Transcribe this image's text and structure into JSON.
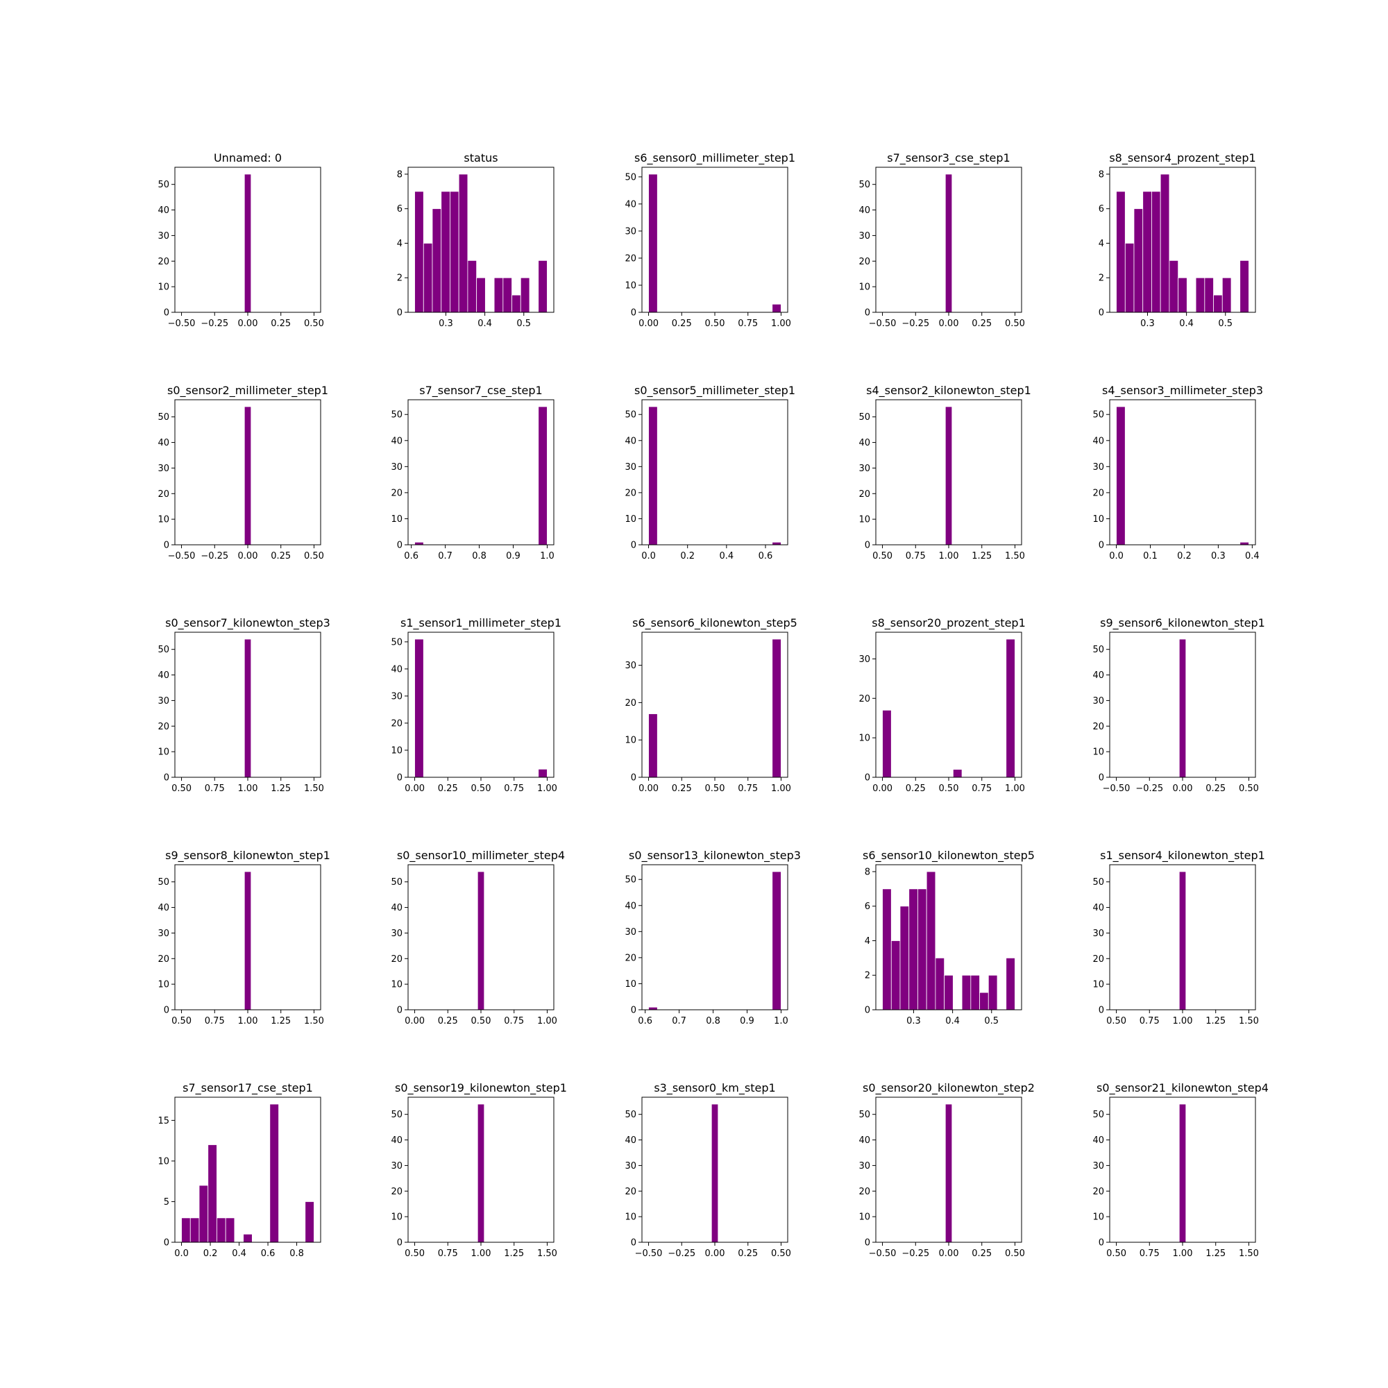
{
  "bar_color": "#800080",
  "bar_edge_color": "#ffffff",
  "chart_data": [
    {
      "type": "bar",
      "title": "Unnamed: 0",
      "bins": [
        -0.025,
        0.025
      ],
      "counts": [
        54
      ],
      "xlim": [
        -0.55,
        0.55
      ],
      "xticks": [
        -0.5,
        -0.25,
        0,
        0.25,
        0.5
      ],
      "xtick_labels": [
        "−0.50",
        "−0.25",
        "0.00",
        "0.25",
        "0.50"
      ],
      "ylim": [
        0,
        56.7
      ],
      "yticks": [
        0,
        10,
        20,
        30,
        40,
        50
      ]
    },
    {
      "type": "bar",
      "title": "status",
      "bins": [
        0.22,
        0.2427,
        0.2653,
        0.288,
        0.3107,
        0.3333,
        0.356,
        0.3787,
        0.4013,
        0.424,
        0.4467,
        0.4693,
        0.492,
        0.5147,
        0.5373,
        0.56
      ],
      "counts": [
        7,
        4,
        6,
        7,
        7,
        8,
        3,
        2,
        0,
        2,
        2,
        1,
        2,
        0,
        3
      ],
      "xlim": [
        0.203,
        0.577
      ],
      "xticks": [
        0.3,
        0.4,
        0.5
      ],
      "xtick_labels": [
        "0.3",
        "0.4",
        "0.5"
      ],
      "ylim": [
        0,
        8.4
      ],
      "yticks": [
        0,
        2,
        4,
        6,
        8
      ]
    },
    {
      "type": "bar",
      "title": "s6_sensor0_millimeter_step1",
      "bins": [
        0,
        0.0667,
        0.1333,
        0.2,
        0.2667,
        0.3333,
        0.4,
        0.4667,
        0.5333,
        0.6,
        0.6667,
        0.7333,
        0.8,
        0.8667,
        0.9333,
        1
      ],
      "counts": [
        51,
        0,
        0,
        0,
        0,
        0,
        0,
        0,
        0,
        0,
        0,
        0,
        0,
        0,
        3
      ],
      "xlim": [
        -0.05,
        1.05
      ],
      "xticks": [
        0,
        0.25,
        0.5,
        0.75,
        1
      ],
      "xtick_labels": [
        "0.00",
        "0.25",
        "0.50",
        "0.75",
        "1.00"
      ],
      "ylim": [
        0,
        53.55
      ],
      "yticks": [
        0,
        10,
        20,
        30,
        40,
        50
      ]
    },
    {
      "type": "bar",
      "title": "s7_sensor3_cse_step1",
      "bins": [
        -0.025,
        0.025
      ],
      "counts": [
        54
      ],
      "xlim": [
        -0.55,
        0.55
      ],
      "xticks": [
        -0.5,
        -0.25,
        0,
        0.25,
        0.5
      ],
      "xtick_labels": [
        "−0.50",
        "−0.25",
        "0.00",
        "0.25",
        "0.50"
      ],
      "ylim": [
        0,
        56.7
      ],
      "yticks": [
        0,
        10,
        20,
        30,
        40,
        50
      ]
    },
    {
      "type": "bar",
      "title": "s8_sensor4_prozent_step1",
      "bins": [
        0.22,
        0.2427,
        0.2653,
        0.288,
        0.3107,
        0.3333,
        0.356,
        0.3787,
        0.4013,
        0.424,
        0.4467,
        0.4693,
        0.492,
        0.5147,
        0.5373,
        0.56
      ],
      "counts": [
        7,
        4,
        6,
        7,
        7,
        8,
        3,
        2,
        0,
        2,
        2,
        1,
        2,
        0,
        3
      ],
      "xlim": [
        0.203,
        0.577
      ],
      "xticks": [
        0.3,
        0.4,
        0.5
      ],
      "xtick_labels": [
        "0.3",
        "0.4",
        "0.5"
      ],
      "ylim": [
        0,
        8.4
      ],
      "yticks": [
        0,
        2,
        4,
        6,
        8
      ]
    },
    {
      "type": "bar",
      "title": "s0_sensor2_millimeter_step1",
      "bins": [
        -0.025,
        0.025
      ],
      "counts": [
        54
      ],
      "xlim": [
        -0.55,
        0.55
      ],
      "xticks": [
        -0.5,
        -0.25,
        0,
        0.25,
        0.5
      ],
      "xtick_labels": [
        "−0.50",
        "−0.25",
        "0.00",
        "0.25",
        "0.50"
      ],
      "ylim": [
        0,
        56.7
      ],
      "yticks": [
        0,
        10,
        20,
        30,
        40,
        50
      ]
    },
    {
      "type": "bar",
      "title": "s7_sensor7_cse_step1",
      "bins": [
        0.61,
        0.636,
        0.662,
        0.688,
        0.714,
        0.74,
        0.766,
        0.792,
        0.818,
        0.844,
        0.87,
        0.896,
        0.922,
        0.948,
        0.974,
        1
      ],
      "counts": [
        1,
        0,
        0,
        0,
        0,
        0,
        0,
        0,
        0,
        0,
        0,
        0,
        0,
        0,
        53
      ],
      "xlim": [
        0.5905,
        1.0195
      ],
      "xticks": [
        0.6,
        0.7,
        0.8,
        0.9,
        1
      ],
      "xtick_labels": [
        "0.6",
        "0.7",
        "0.8",
        "0.9",
        "1.0"
      ],
      "ylim": [
        0,
        55.65
      ],
      "yticks": [
        0,
        10,
        20,
        30,
        40,
        50
      ]
    },
    {
      "type": "bar",
      "title": "s0_sensor5_millimeter_step1",
      "bins": [
        0,
        0.0453,
        0.0907,
        0.136,
        0.1813,
        0.2267,
        0.272,
        0.3173,
        0.3627,
        0.408,
        0.4533,
        0.4987,
        0.544,
        0.5893,
        0.6347,
        0.68
      ],
      "counts": [
        53,
        0,
        0,
        0,
        0,
        0,
        0,
        0,
        0,
        0,
        0,
        0,
        0,
        0,
        1
      ],
      "xlim": [
        -0.034,
        0.714
      ],
      "xticks": [
        0,
        0.2,
        0.4,
        0.6
      ],
      "xtick_labels": [
        "0.0",
        "0.2",
        "0.4",
        "0.6"
      ],
      "ylim": [
        0,
        55.65
      ],
      "yticks": [
        0,
        10,
        20,
        30,
        40,
        50
      ]
    },
    {
      "type": "bar",
      "title": "s4_sensor2_kilonewton_step1",
      "bins": [
        0.975,
        1.025
      ],
      "counts": [
        54
      ],
      "xlim": [
        0.45,
        1.55
      ],
      "xticks": [
        0.5,
        0.75,
        1,
        1.25,
        1.5
      ],
      "xtick_labels": [
        "0.50",
        "0.75",
        "1.00",
        "1.25",
        "1.50"
      ],
      "ylim": [
        0,
        56.7
      ],
      "yticks": [
        0,
        10,
        20,
        30,
        40,
        50
      ]
    },
    {
      "type": "bar",
      "title": "s4_sensor3_millimeter_step3",
      "bins": [
        0,
        0.026,
        0.052,
        0.078,
        0.104,
        0.13,
        0.156,
        0.182,
        0.208,
        0.234,
        0.26,
        0.286,
        0.312,
        0.338,
        0.364,
        0.39
      ],
      "counts": [
        53,
        0,
        0,
        0,
        0,
        0,
        0,
        0,
        0,
        0,
        0,
        0,
        0,
        0,
        1
      ],
      "xlim": [
        -0.0195,
        0.4095
      ],
      "xticks": [
        0,
        0.1,
        0.2,
        0.3,
        0.4
      ],
      "xtick_labels": [
        "0.0",
        "0.1",
        "0.2",
        "0.3",
        "0.4"
      ],
      "ylim": [
        0,
        55.65
      ],
      "yticks": [
        0,
        10,
        20,
        30,
        40,
        50
      ]
    },
    {
      "type": "bar",
      "title": "s0_sensor7_kilonewton_step3",
      "bins": [
        0.975,
        1.025
      ],
      "counts": [
        54
      ],
      "xlim": [
        0.45,
        1.55
      ],
      "xticks": [
        0.5,
        0.75,
        1,
        1.25,
        1.5
      ],
      "xtick_labels": [
        "0.50",
        "0.75",
        "1.00",
        "1.25",
        "1.50"
      ],
      "ylim": [
        0,
        56.7
      ],
      "yticks": [
        0,
        10,
        20,
        30,
        40,
        50
      ]
    },
    {
      "type": "bar",
      "title": "s1_sensor1_millimeter_step1",
      "bins": [
        0,
        0.0667,
        0.1333,
        0.2,
        0.2667,
        0.3333,
        0.4,
        0.4667,
        0.5333,
        0.6,
        0.6667,
        0.7333,
        0.8,
        0.8667,
        0.9333,
        1
      ],
      "counts": [
        51,
        0,
        0,
        0,
        0,
        0,
        0,
        0,
        0,
        0,
        0,
        0,
        0,
        0,
        3
      ],
      "xlim": [
        -0.05,
        1.05
      ],
      "xticks": [
        0,
        0.25,
        0.5,
        0.75,
        1
      ],
      "xtick_labels": [
        "0.00",
        "0.25",
        "0.50",
        "0.75",
        "1.00"
      ],
      "ylim": [
        0,
        53.55
      ],
      "yticks": [
        0,
        10,
        20,
        30,
        40,
        50
      ]
    },
    {
      "type": "bar",
      "title": "s6_sensor6_kilonewton_step5",
      "bins": [
        0,
        0.0667,
        0.1333,
        0.2,
        0.2667,
        0.3333,
        0.4,
        0.4667,
        0.5333,
        0.6,
        0.6667,
        0.7333,
        0.8,
        0.8667,
        0.9333,
        1
      ],
      "counts": [
        17,
        0,
        0,
        0,
        0,
        0,
        0,
        0,
        0,
        0,
        0,
        0,
        0,
        0,
        37
      ],
      "xlim": [
        -0.05,
        1.05
      ],
      "xticks": [
        0,
        0.25,
        0.5,
        0.75,
        1
      ],
      "xtick_labels": [
        "0.00",
        "0.25",
        "0.50",
        "0.75",
        "1.00"
      ],
      "ylim": [
        0,
        38.85
      ],
      "yticks": [
        0,
        10,
        20,
        30
      ]
    },
    {
      "type": "bar",
      "title": "s8_sensor20_prozent_step1",
      "bins": [
        0,
        0.0667,
        0.1333,
        0.2,
        0.2667,
        0.3333,
        0.4,
        0.4667,
        0.5333,
        0.6,
        0.6667,
        0.7333,
        0.8,
        0.8667,
        0.9333,
        1
      ],
      "counts": [
        17,
        0,
        0,
        0,
        0,
        0,
        0,
        0,
        2,
        0,
        0,
        0,
        0,
        0,
        35
      ],
      "xlim": [
        -0.05,
        1.05
      ],
      "xticks": [
        0,
        0.25,
        0.5,
        0.75,
        1
      ],
      "xtick_labels": [
        "0.00",
        "0.25",
        "0.50",
        "0.75",
        "1.00"
      ],
      "ylim": [
        0,
        36.75
      ],
      "yticks": [
        0,
        10,
        20,
        30
      ]
    },
    {
      "type": "bar",
      "title": "s9_sensor6_kilonewton_step1",
      "bins": [
        -0.025,
        0.025
      ],
      "counts": [
        54
      ],
      "xlim": [
        -0.55,
        0.55
      ],
      "xticks": [
        -0.5,
        -0.25,
        0,
        0.25,
        0.5
      ],
      "xtick_labels": [
        "−0.50",
        "−0.25",
        "0.00",
        "0.25",
        "0.50"
      ],
      "ylim": [
        0,
        56.7
      ],
      "yticks": [
        0,
        10,
        20,
        30,
        40,
        50
      ]
    },
    {
      "type": "bar",
      "title": "s9_sensor8_kilonewton_step1",
      "bins": [
        0.975,
        1.025
      ],
      "counts": [
        54
      ],
      "xlim": [
        0.45,
        1.55
      ],
      "xticks": [
        0.5,
        0.75,
        1,
        1.25,
        1.5
      ],
      "xtick_labels": [
        "0.50",
        "0.75",
        "1.00",
        "1.25",
        "1.50"
      ],
      "ylim": [
        0,
        56.7
      ],
      "yticks": [
        0,
        10,
        20,
        30,
        40,
        50
      ]
    },
    {
      "type": "bar",
      "title": "s0_sensor10_millimeter_step4",
      "bins": [
        0.475,
        0.525
      ],
      "counts": [
        54
      ],
      "xlim": [
        -0.05,
        1.05
      ],
      "xticks": [
        0,
        0.25,
        0.5,
        0.75,
        1
      ],
      "xtick_labels": [
        "0.00",
        "0.25",
        "0.50",
        "0.75",
        "1.00"
      ],
      "ylim": [
        0,
        56.7
      ],
      "yticks": [
        0,
        10,
        20,
        30,
        40,
        50
      ]
    },
    {
      "type": "bar",
      "title": "s0_sensor13_kilonewton_step3",
      "bins": [
        0.61,
        0.636,
        0.662,
        0.688,
        0.714,
        0.74,
        0.766,
        0.792,
        0.818,
        0.844,
        0.87,
        0.896,
        0.922,
        0.948,
        0.974,
        1
      ],
      "counts": [
        1,
        0,
        0,
        0,
        0,
        0,
        0,
        0,
        0,
        0,
        0,
        0,
        0,
        0,
        53
      ],
      "xlim": [
        0.5905,
        1.0195
      ],
      "xticks": [
        0.6,
        0.7,
        0.8,
        0.9,
        1
      ],
      "xtick_labels": [
        "0.6",
        "0.7",
        "0.8",
        "0.9",
        "1.0"
      ],
      "ylim": [
        0,
        55.65
      ],
      "yticks": [
        0,
        10,
        20,
        30,
        40,
        50
      ]
    },
    {
      "type": "bar",
      "title": "s6_sensor10_kilonewton_step5",
      "bins": [
        0.22,
        0.2427,
        0.2653,
        0.288,
        0.3107,
        0.3333,
        0.356,
        0.3787,
        0.4013,
        0.424,
        0.4467,
        0.4693,
        0.492,
        0.5147,
        0.5373,
        0.56
      ],
      "counts": [
        7,
        4,
        6,
        7,
        7,
        8,
        3,
        2,
        0,
        2,
        2,
        1,
        2,
        0,
        3
      ],
      "xlim": [
        0.203,
        0.577
      ],
      "xticks": [
        0.3,
        0.4,
        0.5
      ],
      "xtick_labels": [
        "0.3",
        "0.4",
        "0.5"
      ],
      "ylim": [
        0,
        8.4
      ],
      "yticks": [
        0,
        2,
        4,
        6,
        8
      ]
    },
    {
      "type": "bar",
      "title": "s1_sensor4_kilonewton_step1",
      "bins": [
        0.975,
        1.025
      ],
      "counts": [
        54
      ],
      "xlim": [
        0.45,
        1.55
      ],
      "xticks": [
        0.5,
        0.75,
        1,
        1.25,
        1.5
      ],
      "xtick_labels": [
        "0.50",
        "0.75",
        "1.00",
        "1.25",
        "1.50"
      ],
      "ylim": [
        0,
        56.7
      ],
      "yticks": [
        0,
        10,
        20,
        30,
        40,
        50
      ]
    },
    {
      "type": "bar",
      "title": "s7_sensor17_cse_step1",
      "bins": [
        0,
        0.0613,
        0.1227,
        0.184,
        0.2453,
        0.3067,
        0.368,
        0.4293,
        0.4907,
        0.552,
        0.6133,
        0.6747,
        0.736,
        0.7973,
        0.8587,
        0.92
      ],
      "counts": [
        3,
        3,
        7,
        12,
        3,
        3,
        0,
        1,
        0,
        0,
        17,
        0,
        0,
        0,
        5
      ],
      "xlim": [
        -0.046,
        0.966
      ],
      "xticks": [
        0,
        0.2,
        0.4,
        0.6,
        0.8
      ],
      "xtick_labels": [
        "0.0",
        "0.2",
        "0.4",
        "0.6",
        "0.8"
      ],
      "ylim": [
        0,
        17.85
      ],
      "yticks": [
        0,
        5,
        10,
        15
      ]
    },
    {
      "type": "bar",
      "title": "s0_sensor19_kilonewton_step1",
      "bins": [
        0.975,
        1.025
      ],
      "counts": [
        54
      ],
      "xlim": [
        0.45,
        1.55
      ],
      "xticks": [
        0.5,
        0.75,
        1,
        1.25,
        1.5
      ],
      "xtick_labels": [
        "0.50",
        "0.75",
        "1.00",
        "1.25",
        "1.50"
      ],
      "ylim": [
        0,
        56.7
      ],
      "yticks": [
        0,
        10,
        20,
        30,
        40,
        50
      ]
    },
    {
      "type": "bar",
      "title": "s3_sensor0_km_step1",
      "bins": [
        -0.025,
        0.025
      ],
      "counts": [
        54
      ],
      "xlim": [
        -0.55,
        0.55
      ],
      "xticks": [
        -0.5,
        -0.25,
        0,
        0.25,
        0.5
      ],
      "xtick_labels": [
        "−0.50",
        "−0.25",
        "0.00",
        "0.25",
        "0.50"
      ],
      "ylim": [
        0,
        56.7
      ],
      "yticks": [
        0,
        10,
        20,
        30,
        40,
        50
      ]
    },
    {
      "type": "bar",
      "title": "s0_sensor20_kilonewton_step2",
      "bins": [
        -0.025,
        0.025
      ],
      "counts": [
        54
      ],
      "xlim": [
        -0.55,
        0.55
      ],
      "xticks": [
        -0.5,
        -0.25,
        0,
        0.25,
        0.5
      ],
      "xtick_labels": [
        "−0.50",
        "−0.25",
        "0.00",
        "0.25",
        "0.50"
      ],
      "ylim": [
        0,
        56.7
      ],
      "yticks": [
        0,
        10,
        20,
        30,
        40,
        50
      ]
    },
    {
      "type": "bar",
      "title": "s0_sensor21_kilonewton_step4",
      "bins": [
        0.975,
        1.025
      ],
      "counts": [
        54
      ],
      "xlim": [
        0.45,
        1.55
      ],
      "xticks": [
        0.5,
        0.75,
        1,
        1.25,
        1.5
      ],
      "xtick_labels": [
        "0.50",
        "0.75",
        "1.00",
        "1.25",
        "1.50"
      ],
      "ylim": [
        0,
        56.7
      ],
      "yticks": [
        0,
        10,
        20,
        30,
        40,
        50
      ]
    }
  ]
}
